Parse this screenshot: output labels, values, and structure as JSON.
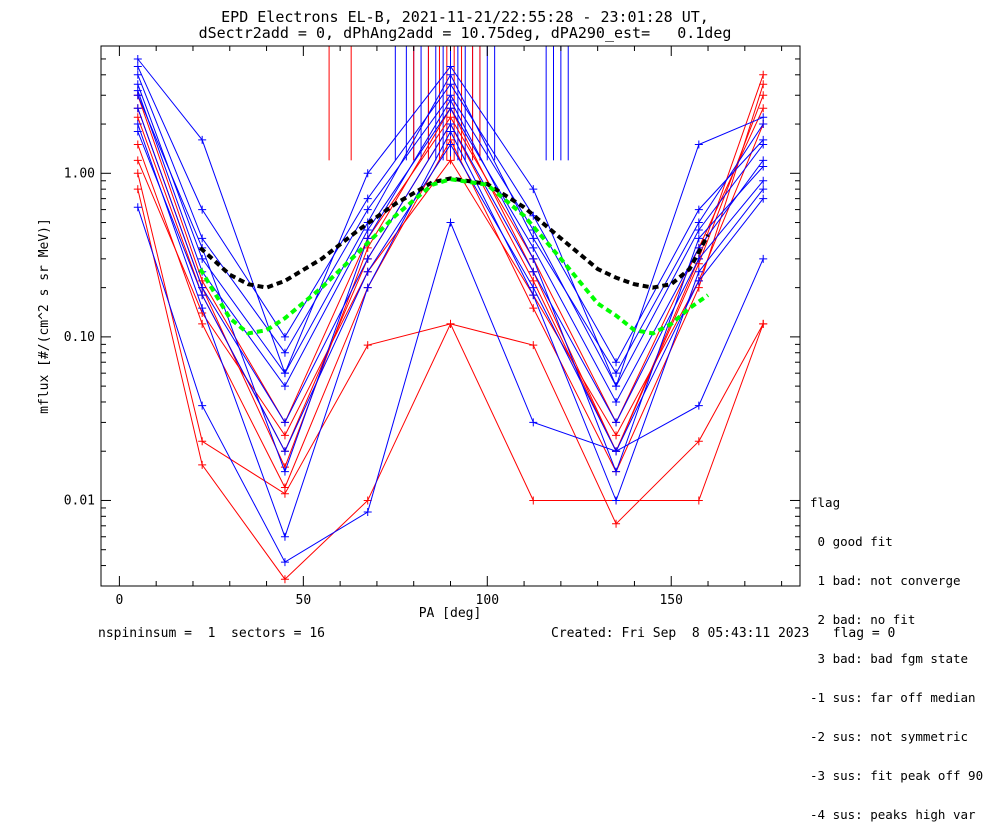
{
  "title_line1": "EPD Electrons EL-B, 2021-11-21/22:55:28 - 23:01:28 UT,",
  "title_line2": "dSectr2add = 0, dPhAng2add = 10.75deg, dPA290_est=   0.1deg",
  "footer_left": "nspininsum =  1  sectors = 16",
  "footer_right": "Created: Fri Sep  8 05:43:11 2023   flag = 0",
  "legend": {
    "title": "flag",
    "items": [
      " 0 good fit",
      " 1 bad: not converge",
      " 2 bad: no fit",
      " 3 bad: bad fgm state",
      "-1 sus: far off median",
      "-2 sus: not symmetric",
      "-3 sus: fit peak off 90",
      "-4 sus: peaks high var"
    ]
  },
  "chart_data": {
    "type": "line",
    "title": "EPD Electrons EL-B, 2021-11-21/22:55:28 - 23:01:28 UT,",
    "subtitle": "dSectr2add = 0, dPhAng2add = 10.75deg, dPA290_est=   0.1deg",
    "xlabel": "PA [deg]",
    "ylabel": "mflux [#/(cm^2 s sr MeV)]",
    "xlim": [
      -5,
      185
    ],
    "ylim": [
      0.003,
      6.0
    ],
    "yscale": "log",
    "x_ticks": [
      "0",
      "50",
      "100",
      "150"
    ],
    "y_ticks": [
      "0.01",
      "0.10",
      "1.00"
    ],
    "colors": {
      "blue": "#0000ff",
      "red": "#ff0000",
      "green": "#00ff00",
      "black": "#000000"
    },
    "pa_sectors": [
      5,
      22.5,
      45,
      67.5,
      90,
      112.5,
      135,
      157.5,
      175
    ],
    "blue_series": [
      [
        3.2,
        0.25,
        0.05,
        0.45,
        2.5,
        0.35,
        0.04,
        0.35,
        1.2
      ],
      [
        4.0,
        0.4,
        0.08,
        0.6,
        3.0,
        0.45,
        0.05,
        0.45,
        1.5
      ],
      [
        2.5,
        0.2,
        0.03,
        0.3,
        2.0,
        0.25,
        0.03,
        0.3,
        0.9
      ],
      [
        3.5,
        0.3,
        0.06,
        0.5,
        4.0,
        0.4,
        0.06,
        0.5,
        2.0
      ],
      [
        1.8,
        0.18,
        0.02,
        0.25,
        1.5,
        0.2,
        0.02,
        0.22,
        0.7
      ],
      [
        0.62,
        0.038,
        0.0042,
        0.0085,
        0.5,
        0.03,
        0.02,
        0.038,
        0.3
      ],
      [
        4.5,
        0.6,
        0.1,
        0.7,
        3.5,
        0.55,
        0.07,
        0.6,
        1.6
      ],
      [
        3.0,
        0.35,
        0.015,
        0.4,
        2.8,
        0.3,
        0.015,
        0.4,
        1.1
      ],
      [
        2.0,
        0.15,
        0.006,
        0.2,
        1.8,
        0.18,
        0.01,
        0.25,
        0.8
      ],
      [
        5.0,
        1.6,
        0.06,
        1.0,
        4.5,
        0.8,
        0.05,
        1.5,
        2.2
      ]
    ],
    "red_series": [
      [
        3.0,
        0.22,
        0.03,
        0.4,
        2.2,
        0.3,
        0.03,
        0.35,
        2.5
      ],
      [
        2.2,
        0.18,
        0.02,
        0.3,
        2.0,
        0.22,
        0.02,
        0.28,
        3.0
      ],
      [
        1.5,
        0.12,
        0.012,
        0.2,
        1.6,
        0.15,
        0.015,
        0.2,
        3.5
      ],
      [
        1.0,
        0.023,
        0.011,
        0.089,
        0.12,
        0.089,
        0.0072,
        0.023,
        0.12
      ],
      [
        0.8,
        0.0165,
        0.0033,
        0.01,
        0.12,
        0.01,
        0.01,
        0.01,
        0.12
      ],
      [
        2.5,
        0.2,
        0.016,
        0.35,
        2.5,
        0.25,
        0.02,
        0.3,
        4.0
      ],
      [
        1.2,
        0.14,
        0.025,
        0.25,
        1.2,
        0.18,
        0.025,
        0.22,
        2.0
      ]
    ],
    "green_fit": {
      "x": [
        22,
        30,
        35,
        40,
        45,
        55,
        65,
        75,
        85,
        90,
        100,
        110,
        120,
        130,
        135,
        140,
        145,
        150,
        155,
        160
      ],
      "y": [
        0.26,
        0.13,
        0.105,
        0.11,
        0.13,
        0.2,
        0.33,
        0.55,
        0.85,
        0.92,
        0.85,
        0.55,
        0.3,
        0.16,
        0.135,
        0.11,
        0.105,
        0.12,
        0.15,
        0.18
      ]
    },
    "black_fit": {
      "x": [
        22,
        30,
        35,
        40,
        45,
        55,
        65,
        75,
        85,
        90,
        100,
        110,
        120,
        130,
        135,
        140,
        145,
        150,
        155,
        160
      ],
      "y": [
        0.35,
        0.24,
        0.21,
        0.2,
        0.22,
        0.3,
        0.45,
        0.65,
        0.88,
        0.93,
        0.86,
        0.62,
        0.4,
        0.26,
        0.23,
        0.21,
        0.2,
        0.21,
        0.26,
        0.42
      ]
    },
    "blue_spikes_x": [
      75,
      78,
      80,
      82,
      84,
      86,
      88,
      90,
      92,
      94,
      96,
      98,
      100,
      102,
      116,
      118,
      120,
      122
    ],
    "red_spikes_x": [
      57,
      63,
      80,
      84,
      87,
      89,
      91,
      93,
      96,
      98
    ]
  }
}
